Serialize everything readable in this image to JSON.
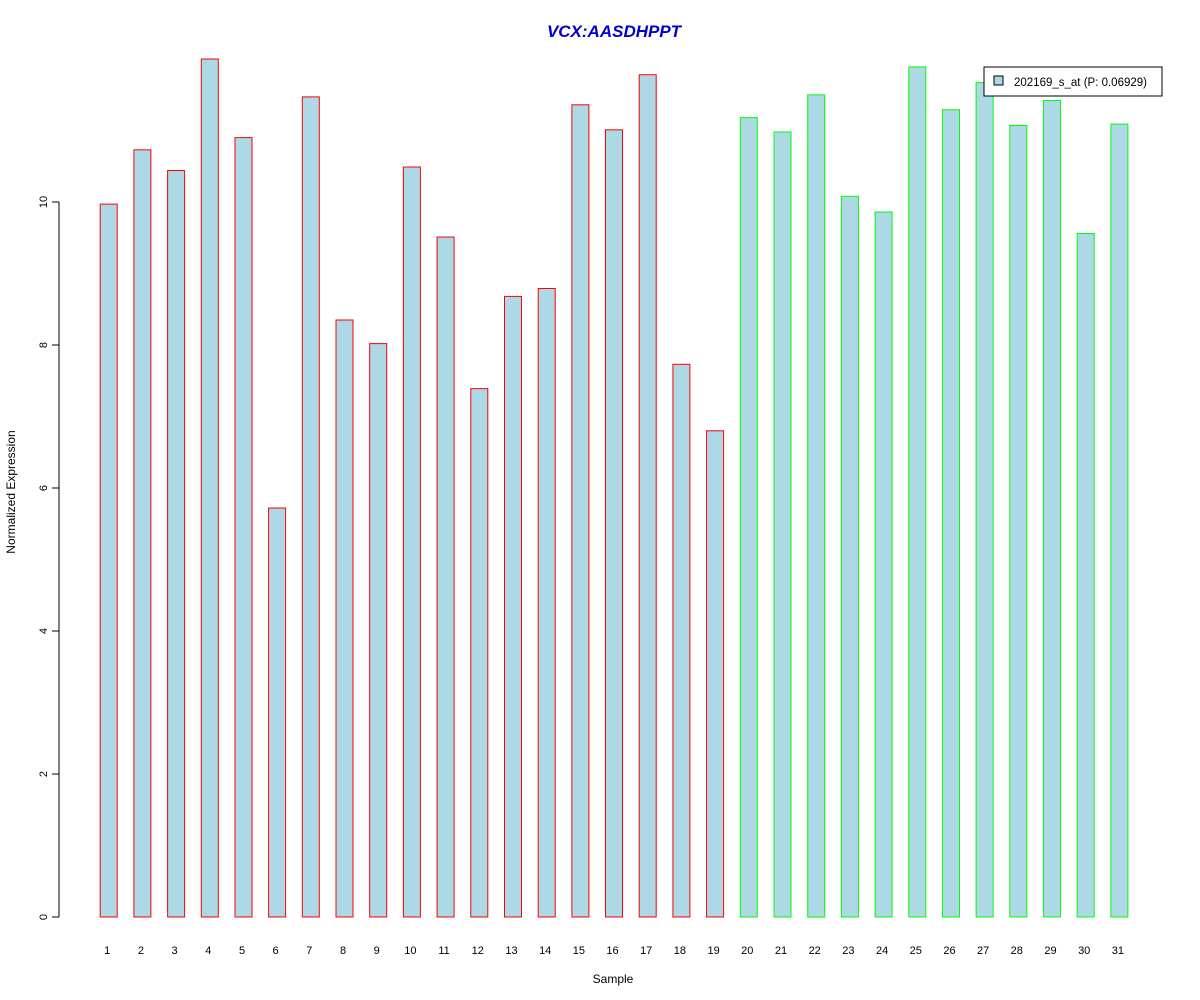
{
  "chart_data": {
    "type": "bar",
    "title": "VCX:AASDHPPT",
    "xlabel": "Sample",
    "ylabel": "Normalized Expression",
    "categories": [
      "1",
      "2",
      "3",
      "4",
      "5",
      "6",
      "7",
      "8",
      "9",
      "10",
      "11",
      "12",
      "13",
      "14",
      "15",
      "16",
      "17",
      "18",
      "19",
      "20",
      "21",
      "22",
      "23",
      "24",
      "25",
      "26",
      "27",
      "28",
      "29",
      "30",
      "31"
    ],
    "series": [
      {
        "name": "202169_s_at (P: 0.06929)",
        "values": [
          9.97,
          10.73,
          10.44,
          12.0,
          10.9,
          5.72,
          11.47,
          8.35,
          8.02,
          10.49,
          9.51,
          7.39,
          8.68,
          8.79,
          11.36,
          11.01,
          11.78,
          7.73,
          6.8,
          11.18,
          10.98,
          11.5,
          10.08,
          9.86,
          11.89,
          11.29,
          11.67,
          11.07,
          11.42,
          9.56,
          11.09
        ]
      }
    ],
    "group_split_after": 19,
    "ylim": [
      0,
      12
    ],
    "yticks": [
      0,
      2,
      4,
      6,
      8,
      10
    ],
    "grid": false,
    "legend_position": "top-right",
    "colors": {
      "bar_fill": "#add8e6",
      "group1_border": "#ff0000",
      "group2_border": "#00ff00",
      "title": "#0000cd"
    }
  }
}
